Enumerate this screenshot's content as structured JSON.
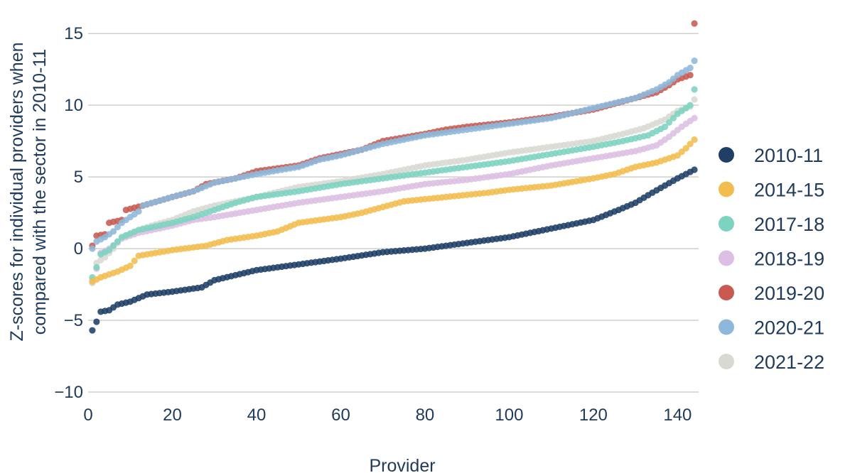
{
  "chart_data": {
    "type": "scatter",
    "title": "",
    "xlabel": "Provider",
    "ylabel": [
      "Z-scores for individual providers when",
      "compared with the sector in 2010-11"
    ],
    "xlim": [
      0,
      145
    ],
    "ylim": [
      -10,
      16
    ],
    "xticks": [
      0,
      20,
      40,
      60,
      80,
      100,
      120,
      140
    ],
    "yticks": [
      -10,
      -5,
      0,
      5,
      10,
      15
    ],
    "ytick_labels": [
      "−10",
      "−5",
      "0",
      "5",
      "10",
      "15"
    ],
    "grid": "horizontal",
    "legend_position": "right",
    "n_providers": 144,
    "series": [
      {
        "name": "2010-11",
        "color": "#1f3f66",
        "anchors": [
          [
            1,
            -5.7
          ],
          [
            2,
            -5.1
          ],
          [
            3,
            -4.4
          ],
          [
            5,
            -4.3
          ],
          [
            7,
            -3.9
          ],
          [
            10,
            -3.7
          ],
          [
            14,
            -3.2
          ],
          [
            20,
            -3.0
          ],
          [
            27,
            -2.7
          ],
          [
            30,
            -2.2
          ],
          [
            40,
            -1.5
          ],
          [
            50,
            -1.1
          ],
          [
            60,
            -0.7
          ],
          [
            70,
            -0.25
          ],
          [
            80,
            0.0
          ],
          [
            90,
            0.4
          ],
          [
            100,
            0.8
          ],
          [
            105,
            1.1
          ],
          [
            110,
            1.4
          ],
          [
            120,
            2.0
          ],
          [
            126,
            2.7
          ],
          [
            130,
            3.2
          ],
          [
            134,
            3.9
          ],
          [
            137,
            4.4
          ],
          [
            140,
            4.9
          ],
          [
            142,
            5.2
          ],
          [
            144,
            5.5
          ]
        ]
      },
      {
        "name": "2014-15",
        "color": "#f2bd4f",
        "anchors": [
          [
            1,
            -2.3
          ],
          [
            3,
            -2.0
          ],
          [
            7,
            -1.6
          ],
          [
            10,
            -1.2
          ],
          [
            12,
            -0.5
          ],
          [
            20,
            -0.1
          ],
          [
            28,
            0.2
          ],
          [
            33,
            0.6
          ],
          [
            40,
            0.9
          ],
          [
            45,
            1.2
          ],
          [
            50,
            1.8
          ],
          [
            60,
            2.2
          ],
          [
            65,
            2.5
          ],
          [
            70,
            2.9
          ],
          [
            75,
            3.3
          ],
          [
            85,
            3.6
          ],
          [
            95,
            3.9
          ],
          [
            100,
            4.1
          ],
          [
            110,
            4.4
          ],
          [
            120,
            4.9
          ],
          [
            125,
            5.2
          ],
          [
            130,
            5.7
          ],
          [
            135,
            6.0
          ],
          [
            140,
            6.5
          ],
          [
            142,
            7.0
          ],
          [
            144,
            7.6
          ]
        ]
      },
      {
        "name": "2017-18",
        "color": "#7dd3c0",
        "anchors": [
          [
            1,
            -2.0
          ],
          [
            2,
            -1.3
          ],
          [
            3,
            -0.4
          ],
          [
            5,
            -0.1
          ],
          [
            8,
            0.8
          ],
          [
            12,
            1.3
          ],
          [
            20,
            1.8
          ],
          [
            25,
            2.2
          ],
          [
            30,
            2.7
          ],
          [
            35,
            3.2
          ],
          [
            40,
            3.6
          ],
          [
            50,
            4.0
          ],
          [
            60,
            4.5
          ],
          [
            70,
            4.9
          ],
          [
            80,
            5.3
          ],
          [
            90,
            5.7
          ],
          [
            100,
            6.1
          ],
          [
            110,
            6.6
          ],
          [
            120,
            7.1
          ],
          [
            127,
            7.5
          ],
          [
            133,
            7.9
          ],
          [
            137,
            8.5
          ],
          [
            140,
            9.4
          ],
          [
            143,
            10.0
          ],
          [
            144,
            11.1
          ]
        ]
      },
      {
        "name": "2018-19",
        "color": "#dcbfe3",
        "anchors": [
          [
            1,
            -2.2
          ],
          [
            2,
            -1.4
          ],
          [
            3,
            -0.3
          ],
          [
            5,
            0.0
          ],
          [
            8,
            0.7
          ],
          [
            12,
            1.1
          ],
          [
            20,
            1.6
          ],
          [
            25,
            2.0
          ],
          [
            30,
            2.2
          ],
          [
            40,
            2.7
          ],
          [
            50,
            3.2
          ],
          [
            60,
            3.6
          ],
          [
            70,
            4.0
          ],
          [
            80,
            4.5
          ],
          [
            90,
            4.8
          ],
          [
            100,
            5.2
          ],
          [
            110,
            5.8
          ],
          [
            120,
            6.3
          ],
          [
            130,
            6.8
          ],
          [
            135,
            7.2
          ],
          [
            138,
            7.8
          ],
          [
            141,
            8.5
          ],
          [
            143,
            8.9
          ],
          [
            144,
            9.1
          ]
        ]
      },
      {
        "name": "2019-20",
        "color": "#c85a51",
        "anchors": [
          [
            1,
            0.2
          ],
          [
            2,
            0.9
          ],
          [
            4,
            1.0
          ],
          [
            5,
            1.8
          ],
          [
            8,
            2.0
          ],
          [
            9,
            2.7
          ],
          [
            13,
            3.0
          ],
          [
            20,
            3.6
          ],
          [
            25,
            4.0
          ],
          [
            28,
            4.5
          ],
          [
            35,
            4.9
          ],
          [
            40,
            5.4
          ],
          [
            50,
            5.8
          ],
          [
            55,
            6.3
          ],
          [
            60,
            6.6
          ],
          [
            65,
            6.9
          ],
          [
            70,
            7.5
          ],
          [
            80,
            8.0
          ],
          [
            85,
            8.3
          ],
          [
            90,
            8.5
          ],
          [
            100,
            8.8
          ],
          [
            110,
            9.2
          ],
          [
            120,
            9.7
          ],
          [
            130,
            10.5
          ],
          [
            135,
            10.9
          ],
          [
            138,
            11.4
          ],
          [
            140,
            11.8
          ],
          [
            143,
            12.1
          ],
          [
            144,
            15.7
          ]
        ]
      },
      {
        "name": "2020-21",
        "color": "#8eb8db",
        "anchors": [
          [
            1,
            0.0
          ],
          [
            2,
            0.5
          ],
          [
            4,
            0.8
          ],
          [
            6,
            1.2
          ],
          [
            8,
            1.8
          ],
          [
            10,
            2.2
          ],
          [
            12,
            2.6
          ],
          [
            13,
            3.0
          ],
          [
            20,
            3.6
          ],
          [
            25,
            4.0
          ],
          [
            30,
            4.6
          ],
          [
            40,
            5.2
          ],
          [
            50,
            5.7
          ],
          [
            55,
            6.2
          ],
          [
            60,
            6.5
          ],
          [
            65,
            6.9
          ],
          [
            70,
            7.3
          ],
          [
            80,
            7.9
          ],
          [
            90,
            8.3
          ],
          [
            100,
            8.7
          ],
          [
            110,
            9.1
          ],
          [
            120,
            9.8
          ],
          [
            130,
            10.5
          ],
          [
            135,
            11.1
          ],
          [
            138,
            11.6
          ],
          [
            140,
            12.1
          ],
          [
            143,
            12.6
          ],
          [
            144,
            13.1
          ]
        ]
      },
      {
        "name": "2021-22",
        "color": "#d9d9d3",
        "anchors": [
          [
            1,
            -2.4
          ],
          [
            2,
            -1.0
          ],
          [
            4,
            -0.6
          ],
          [
            6,
            0.0
          ],
          [
            8,
            0.8
          ],
          [
            12,
            1.3
          ],
          [
            15,
            1.6
          ],
          [
            20,
            2.0
          ],
          [
            25,
            2.6
          ],
          [
            30,
            3.0
          ],
          [
            40,
            3.6
          ],
          [
            50,
            4.3
          ],
          [
            60,
            4.7
          ],
          [
            70,
            5.2
          ],
          [
            80,
            5.8
          ],
          [
            90,
            6.2
          ],
          [
            100,
            6.7
          ],
          [
            110,
            7.1
          ],
          [
            120,
            7.5
          ],
          [
            127,
            8.0
          ],
          [
            132,
            8.4
          ],
          [
            137,
            9.0
          ],
          [
            140,
            9.6
          ],
          [
            143,
            9.9
          ],
          [
            144,
            10.4
          ]
        ]
      }
    ]
  }
}
